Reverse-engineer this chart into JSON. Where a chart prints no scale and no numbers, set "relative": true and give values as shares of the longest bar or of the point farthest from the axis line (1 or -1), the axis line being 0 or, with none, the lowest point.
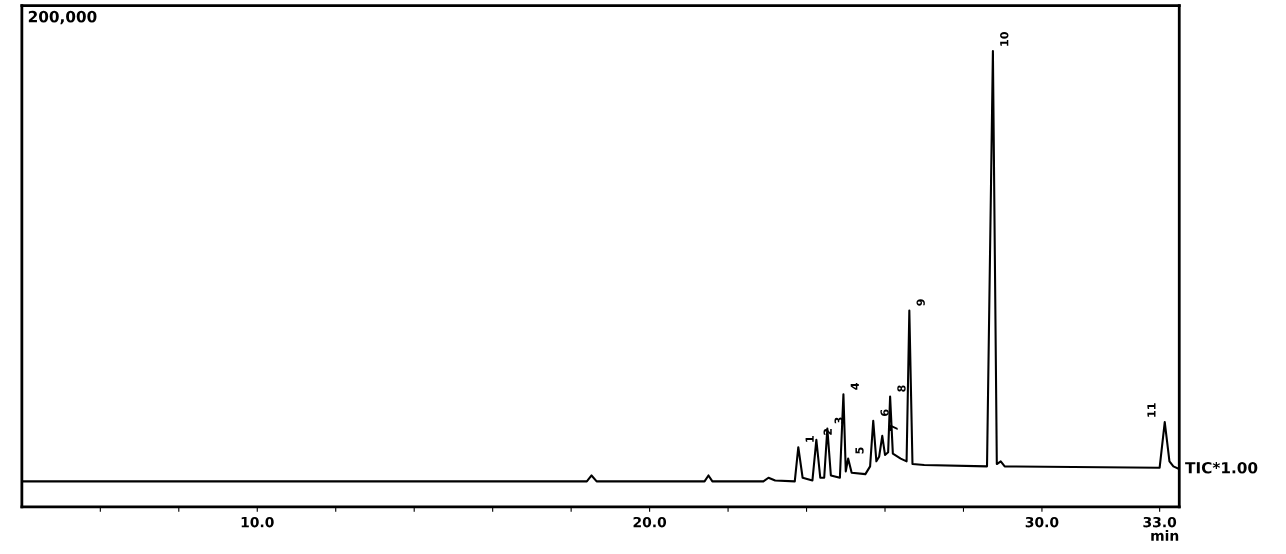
{
  "chart_data": {
    "type": "line",
    "relative": true,
    "xlabel": "min",
    "xlim": [
      4.0,
      33.5
    ],
    "xticks": [
      {
        "value": 6,
        "label": null
      },
      {
        "value": 8,
        "label": null
      },
      {
        "value": 10,
        "label": "10.0"
      },
      {
        "value": 12,
        "label": null
      },
      {
        "value": 14,
        "label": null
      },
      {
        "value": 16,
        "label": null
      },
      {
        "value": 18,
        "label": null
      },
      {
        "value": 20,
        "label": "20.0"
      },
      {
        "value": 22,
        "label": null
      },
      {
        "value": 24,
        "label": null
      },
      {
        "value": 26,
        "label": null
      },
      {
        "value": 28,
        "label": null
      },
      {
        "value": 30,
        "label": "30.0"
      },
      {
        "value": 33,
        "label": "33.0"
      }
    ],
    "tick_labels": "x",
    "grid": false,
    "legend": false,
    "marker": "none",
    "line_style": "solid",
    "series": [
      {
        "color": "#000000",
        "x": [
          4.0,
          18.4,
          18.52,
          18.65,
          21.4,
          21.5,
          21.6,
          22.9,
          23.03,
          23.2,
          23.7,
          23.79,
          23.9,
          24.15,
          24.25,
          24.35,
          24.45,
          24.53,
          24.62,
          24.85,
          24.94,
          25.0,
          25.06,
          25.15,
          25.5,
          25.62,
          25.7,
          25.78,
          25.85,
          25.93,
          26.0,
          26.08,
          26.13,
          26.2,
          26.4,
          26.55,
          26.62,
          26.7,
          27.0,
          28.6,
          28.75,
          28.85,
          28.95,
          29.05,
          33.0,
          33.13,
          33.25,
          33.35,
          33.5
        ],
        "values": [
          0.056,
          0.056,
          0.069,
          0.056,
          0.056,
          0.069,
          0.056,
          0.056,
          0.064,
          0.058,
          0.056,
          0.131,
          0.064,
          0.058,
          0.147,
          0.064,
          0.064,
          0.172,
          0.069,
          0.064,
          0.247,
          0.078,
          0.106,
          0.075,
          0.072,
          0.089,
          0.189,
          0.1,
          0.11,
          0.156,
          0.114,
          0.12,
          0.242,
          0.117,
          0.106,
          0.1,
          0.431,
          0.094,
          0.092,
          0.089,
          1.0,
          0.094,
          0.1,
          0.089,
          0.086,
          0.186,
          0.1,
          0.089,
          0.083
        ]
      }
    ],
    "annotations": [
      "200,000",
      "TIC*1.00",
      {
        "text": "1",
        "x": 23.79,
        "y": 0.131
      },
      {
        "text": "2",
        "x": 24.25,
        "y": 0.147
      },
      {
        "text": "3",
        "x": 24.53,
        "y": 0.172
      },
      {
        "text": "4",
        "x": 24.94,
        "y": 0.247
      },
      {
        "text": "5",
        "x": 25.06,
        "y": 0.106
      },
      {
        "text": "6",
        "x": 25.7,
        "y": 0.189
      },
      {
        "text": "7",
        "x": 25.93,
        "y": 0.156
      },
      {
        "text": "8",
        "x": 26.13,
        "y": 0.242
      },
      {
        "text": "9",
        "x": 26.62,
        "y": 0.431
      },
      {
        "text": "10",
        "x": 28.75,
        "y": 1.0
      },
      {
        "text": "11",
        "x": 33.13,
        "y": 0.186
      }
    ]
  }
}
